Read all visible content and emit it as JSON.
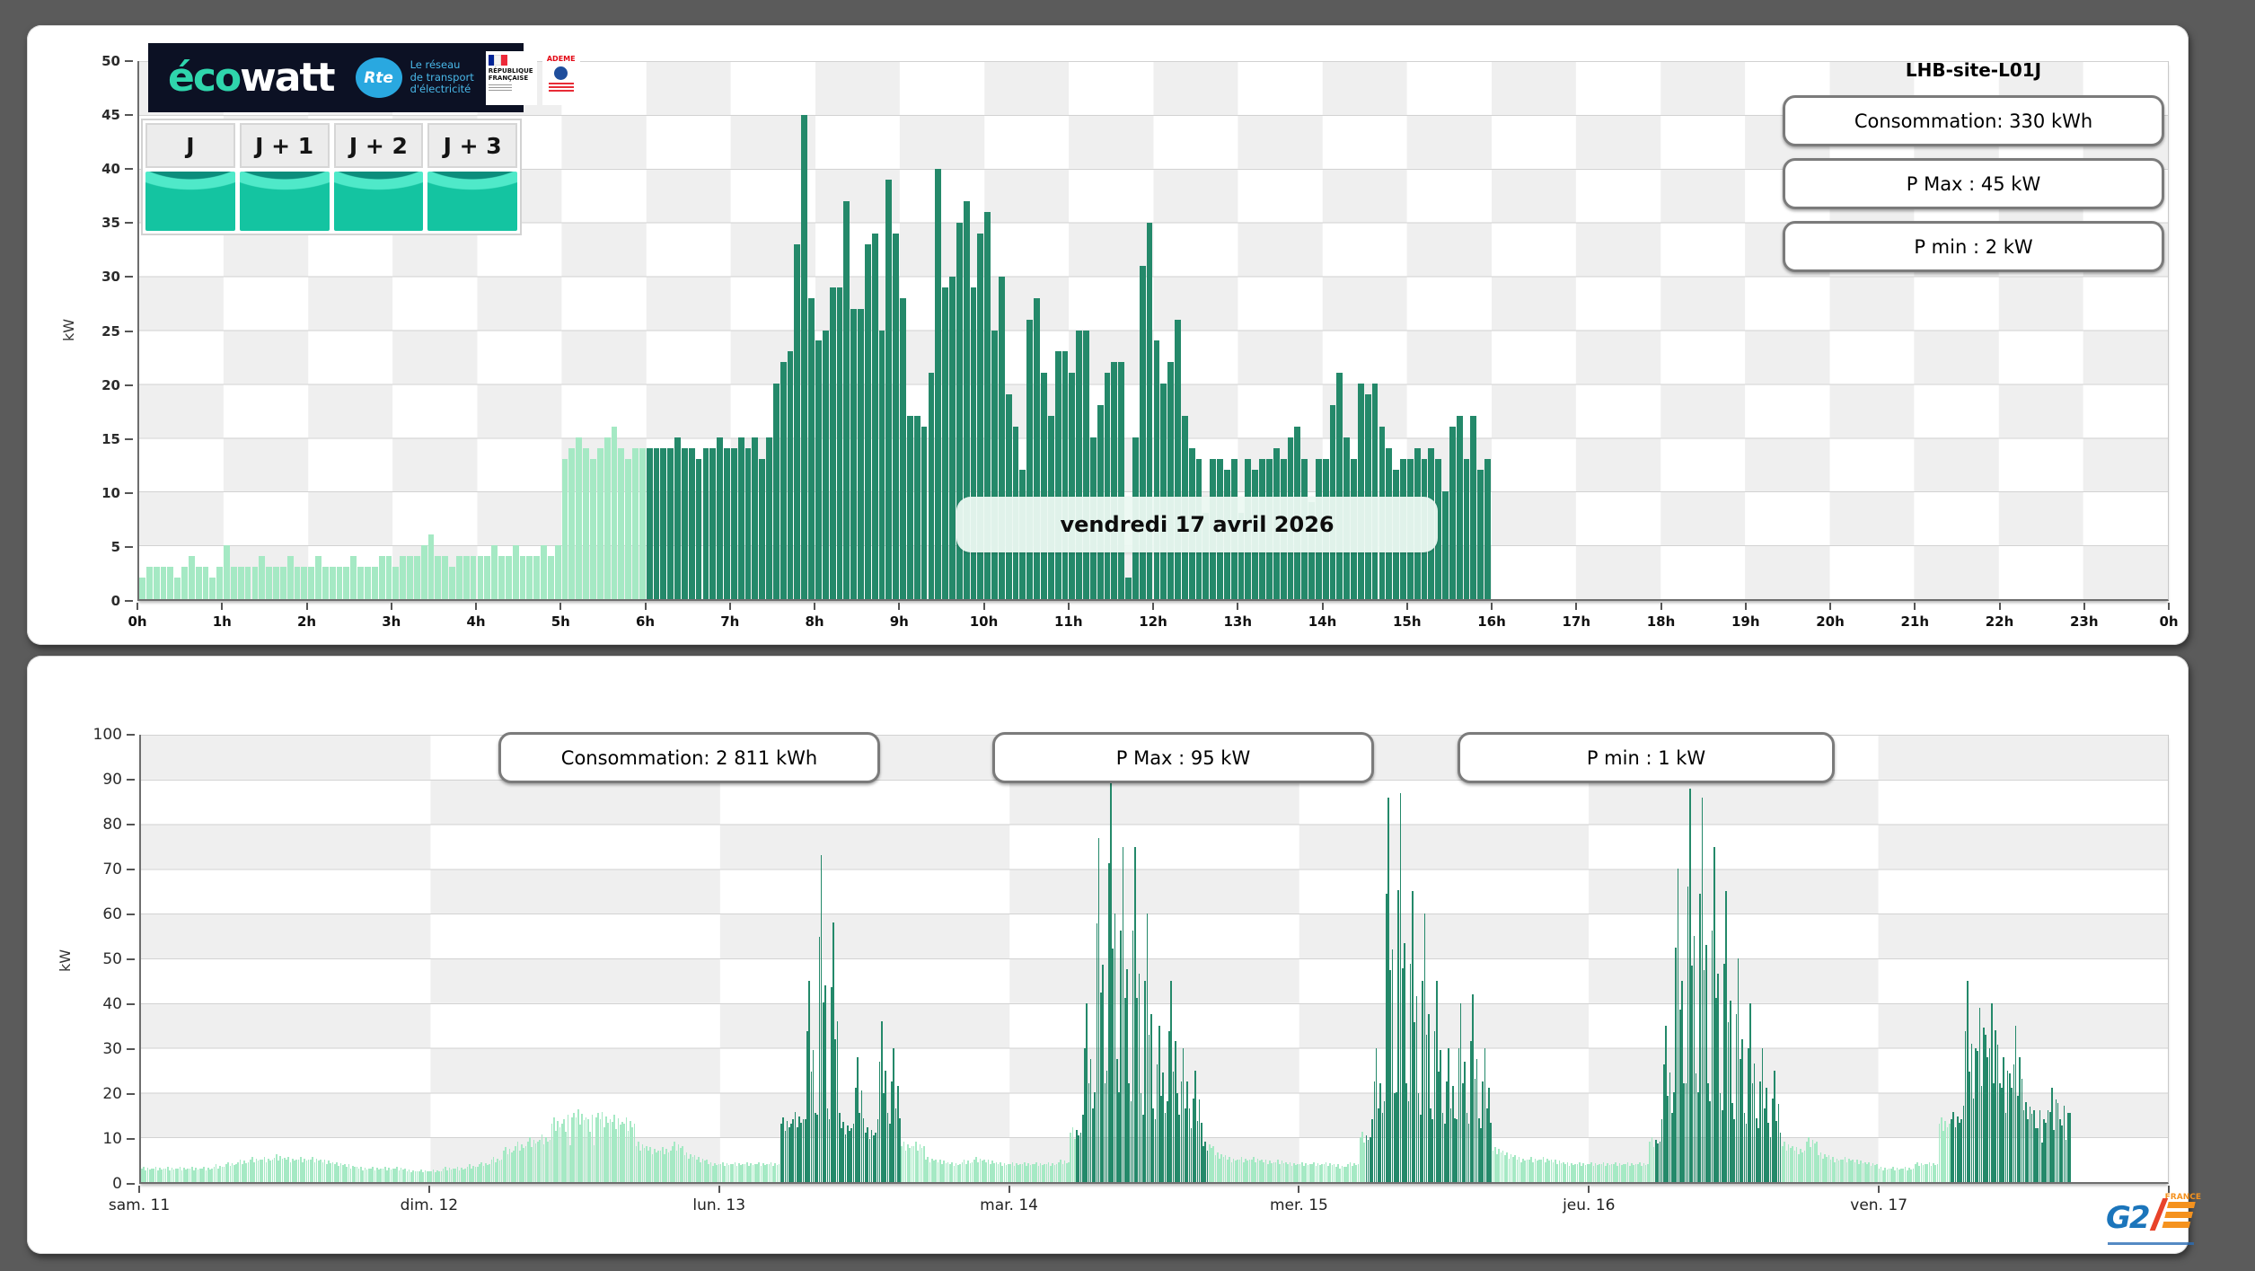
{
  "page": {
    "background": "#5b5b5b"
  },
  "top_panel": {
    "site_title": "LHB-site-L01J",
    "stats": [
      {
        "label": "Consommation: 330 kWh"
      },
      {
        "label": "P Max :  45 kW"
      },
      {
        "label": "P min : 2 kW"
      }
    ],
    "date_label": "vendredi 17 avril 2026",
    "day_buttons": [
      {
        "label": "J"
      },
      {
        "label": "J + 1"
      },
      {
        "label": "J + 2"
      },
      {
        "label": "J + 3"
      }
    ],
    "ecowatt": {
      "eco": "éco",
      "watt": "watt",
      "rte": "Rte",
      "tagline": [
        "Le réseau",
        "de transport",
        "d'électricité"
      ],
      "republique": [
        "RÉPUBLIQUE",
        "FRANÇAISE"
      ],
      "ademe": "ADEME"
    }
  },
  "bottom_panel": {
    "stats": [
      {
        "label": "Consommation: 2 811 kWh"
      },
      {
        "label": "P Max :  95 kW"
      },
      {
        "label": "P min : 1 kW"
      }
    ],
    "g2e": {
      "g2": "G2",
      "e": "E",
      "france": "FRANCE"
    }
  },
  "chart_data": [
    {
      "id": "daily-load-curve",
      "type": "bar",
      "title": "vendredi 17 avril 2026",
      "ylabel": "kW",
      "ylim": [
        0,
        50
      ],
      "yticks": [
        50,
        45,
        40,
        35,
        30,
        25,
        20,
        15,
        10,
        5,
        0
      ],
      "xticks": [
        "0h",
        "1h",
        "2h",
        "3h",
        "4h",
        "5h",
        "6h",
        "7h",
        "8h",
        "9h",
        "10h",
        "11h",
        "12h",
        "13h",
        "14h",
        "15h",
        "16h",
        "17h",
        "18h",
        "19h",
        "20h",
        "21h",
        "22h",
        "23h",
        "0h"
      ],
      "interval_minutes": 5,
      "hours_span": 24,
      "data_end_hour": 16,
      "color_change_hour": 6,
      "colors": {
        "offpeak": "#a5e9c4",
        "peak": "#24896a"
      },
      "legend_position": "none",
      "grid": "checkerboard 1h x 5kW",
      "values": [
        2,
        3,
        3,
        3,
        3,
        2,
        3,
        4,
        3,
        3,
        2,
        3,
        5,
        3,
        3,
        3,
        3,
        4,
        3,
        3,
        3,
        4,
        3,
        3,
        3,
        4,
        3,
        3,
        3,
        3,
        4,
        3,
        3,
        3,
        4,
        4,
        3,
        4,
        4,
        4,
        5,
        6,
        4,
        4,
        3,
        4,
        4,
        4,
        4,
        4,
        5,
        4,
        4,
        5,
        4,
        4,
        4,
        5,
        4,
        5,
        13,
        14,
        15,
        14,
        13,
        14,
        15,
        16,
        14,
        13,
        14,
        14,
        14,
        14,
        14,
        14,
        15,
        14,
        14,
        13,
        14,
        14,
        15,
        14,
        14,
        15,
        14,
        15,
        13,
        15,
        20,
        22,
        23,
        33,
        45,
        28,
        24,
        25,
        29,
        29,
        37,
        27,
        27,
        33,
        34,
        25,
        39,
        34,
        28,
        17,
        17,
        16,
        21,
        40,
        29,
        30,
        35,
        37,
        29,
        34,
        36,
        25,
        30,
        19,
        16,
        12,
        26,
        28,
        21,
        17,
        23,
        23,
        21,
        25,
        25,
        15,
        18,
        21,
        22,
        22,
        2,
        15,
        31,
        35,
        24,
        20,
        22,
        26,
        17,
        14,
        13,
        8,
        13,
        13,
        12,
        13,
        8,
        13,
        12,
        13,
        13,
        14,
        13,
        15,
        16,
        13,
        9,
        13,
        13,
        18,
        21,
        15,
        13,
        20,
        19,
        20,
        16,
        14,
        12,
        13,
        13,
        14,
        13,
        14,
        13,
        10,
        16,
        17,
        13,
        17,
        12,
        13
      ]
    },
    {
      "id": "weekly-load-curve",
      "type": "bar",
      "ylabel": "kW",
      "ylim": [
        0,
        100
      ],
      "yticks": [
        100,
        90,
        80,
        70,
        60,
        50,
        40,
        30,
        20,
        10,
        0
      ],
      "days_span": 7,
      "colors": {
        "offpeak": "#a5e9c4",
        "peak": "#24896a"
      },
      "grid": "checkerboard 1day x 10kW",
      "days": [
        {
          "label": "sam. 11",
          "dark": null,
          "base": [
            3,
            3,
            3,
            3,
            3,
            3,
            3.5,
            4,
            4.5,
            5,
            5,
            5.5,
            5,
            5,
            5,
            4.5,
            4,
            3.5,
            3,
            3,
            3,
            3,
            2.5,
            2.5
          ],
          "peaks": {}
        },
        {
          "label": "dim. 12",
          "dark": null,
          "base": [
            2.5,
            3,
            3,
            3.5,
            4,
            5,
            7,
            8,
            9,
            9.5,
            13,
            14,
            14.5,
            14,
            14,
            13.5,
            13,
            8,
            7,
            7,
            8,
            6,
            5,
            4
          ],
          "peaks": {
            "11": 15,
            "13": 15
          }
        },
        {
          "label": "lun. 13",
          "dark": [
            5,
            15
          ],
          "base": [
            4,
            4,
            4,
            4,
            4,
            13,
            14,
            14,
            15,
            14,
            12,
            13,
            11,
            14,
            13,
            8,
            8,
            5,
            4.5,
            4,
            4.5,
            5,
            4.5,
            4
          ],
          "peaks": {
            "7": 45,
            "8": 73,
            "9": 58,
            "11": 28,
            "13": 36,
            "14": 30
          }
        },
        {
          "label": "mar. 14",
          "dark": [
            5.5,
            16.5
          ],
          "base": [
            4,
            4,
            4,
            4,
            4.5,
            11,
            15,
            20,
            25,
            20,
            18,
            15,
            14,
            18,
            15,
            12,
            8,
            6,
            5,
            5,
            5,
            4.5,
            4.5,
            4
          ],
          "peaks": {
            "6": 40,
            "7": 77,
            "8": 95,
            "9": 75,
            "10": 75,
            "11": 60,
            "12": 35,
            "13": 45,
            "14": 30,
            "15": 25
          }
        },
        {
          "label": "mer. 15",
          "dark": [
            5.5,
            16
          ],
          "base": [
            4,
            4,
            4,
            3.5,
            4,
            10,
            14,
            18,
            20,
            18,
            15,
            14,
            13,
            14,
            13,
            12,
            7,
            6,
            5,
            5,
            5,
            4.5,
            4,
            4
          ],
          "peaks": {
            "6": 30,
            "7": 86,
            "8": 87,
            "9": 65,
            "10": 60,
            "11": 45,
            "12": 30,
            "13": 40,
            "14": 42,
            "15": 30
          }
        },
        {
          "label": "jeu. 16",
          "dark": [
            5.5,
            16
          ],
          "base": [
            4,
            4,
            4,
            4,
            4,
            9,
            14,
            20,
            22,
            20,
            18,
            16,
            14,
            13,
            12,
            10,
            8,
            7,
            9,
            6,
            5,
            5,
            4.5,
            4
          ],
          "peaks": {
            "6": 35,
            "7": 70,
            "8": 88,
            "9": 86,
            "10": 75,
            "11": 65,
            "12": 50,
            "13": 40,
            "14": 30,
            "15": 25
          }
        },
        {
          "label": "ven. 17",
          "dark": [
            6,
            16
          ],
          "base": [
            3,
            3,
            3,
            4,
            4,
            13,
            14,
            17,
            30,
            28,
            22,
            21,
            16,
            12,
            16,
            14
          ],
          "peaks": {
            "7": 45,
            "8": 39,
            "9": 40,
            "10": 28,
            "11": 35,
            "13": 16,
            "14": 21,
            "15": 17
          }
        }
      ]
    }
  ]
}
